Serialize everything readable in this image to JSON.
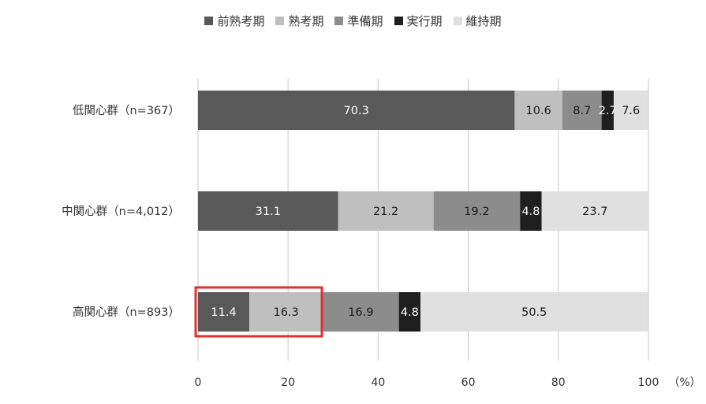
{
  "chart_data": {
    "type": "bar",
    "orientation": "horizontal",
    "stacked": true,
    "categories": [
      "低関心群（n=367）",
      "中関心群（n=4,012）",
      "高関心群（n=893）"
    ],
    "series": [
      {
        "name": "前熟考期",
        "values": [
          70.3,
          31.1,
          11.4
        ],
        "labels": [
          "70.3",
          "31.1",
          "11.4"
        ],
        "color": "#595959"
      },
      {
        "name": "熟考期",
        "values": [
          10.6,
          21.2,
          16.3
        ],
        "labels": [
          "10.6",
          "21.2",
          "16.3"
        ],
        "color": "#bfbfbf"
      },
      {
        "name": "準備期",
        "values": [
          8.7,
          19.2,
          16.9
        ],
        "labels": [
          "8.7",
          "19.2",
          "16.9"
        ],
        "color": "#8c8c8c"
      },
      {
        "name": "実行期",
        "values": [
          2.7,
          4.8,
          4.8
        ],
        "labels": [
          "2.7",
          "4.8",
          "4.8"
        ],
        "color": "#1f1f1f"
      },
      {
        "name": "維持期",
        "values": [
          7.6,
          23.7,
          50.5
        ],
        "labels": [
          "7.6",
          "23.7",
          "50.5"
        ],
        "color": "#e0e0e0"
      }
    ],
    "xlim": [
      0,
      100
    ],
    "xticks": [
      "0",
      "20",
      "40",
      "60",
      "80",
      "100"
    ],
    "xunit": "（%）",
    "grid": true,
    "legend": "top-center",
    "highlight": {
      "category_index": 2,
      "x_range": [
        0,
        27.5
      ],
      "color": "#e03030"
    }
  }
}
